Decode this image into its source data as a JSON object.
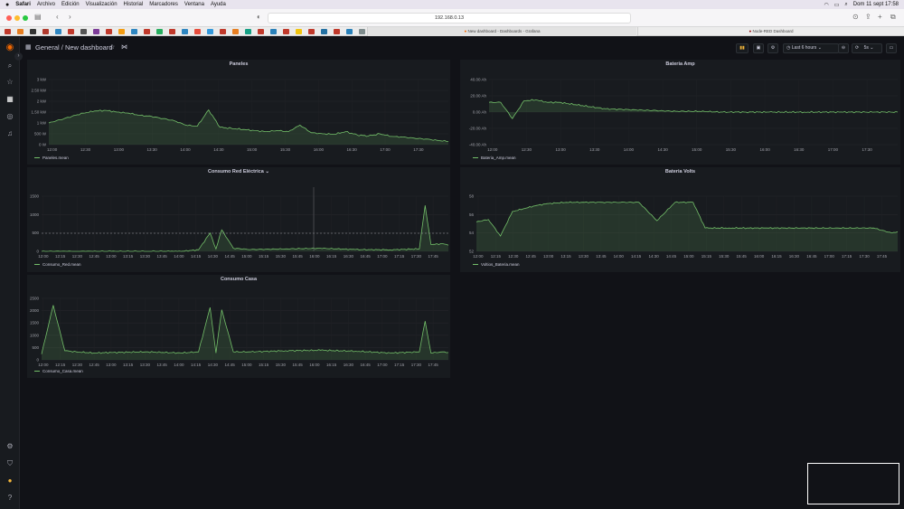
{
  "menubar": {
    "apple": "",
    "items": [
      "Safari",
      "Archivo",
      "Edición",
      "Visualización",
      "Historial",
      "Marcadores",
      "Ventana",
      "Ayuda"
    ],
    "clock": "Dom 11 sept  17:58"
  },
  "browser": {
    "address": "192.168.0.13",
    "tab1": "New dashboard - Dashboards - Grafana",
    "tab2": "Node-RED Dashboard"
  },
  "topbar": {
    "breadcrumb_root": "General",
    "breadcrumb_sep": "/",
    "breadcrumb_page": "New dashboard",
    "time_range": "Last 6 hours",
    "refresh": "5s"
  },
  "colors": {
    "series": "#73bf69",
    "bg": "#111217",
    "panel": "#181b1f"
  },
  "panels": {
    "paneles": {
      "title": "Paneles",
      "legend": "Paneles.mean",
      "yticks": [
        "3 kW",
        "2.50 kW",
        "2 kW",
        "1.50 kW",
        "1 kW",
        "500 W",
        "0 W"
      ],
      "xticks": [
        "12:00",
        "12:30",
        "13:00",
        "13:30",
        "14:00",
        "14:30",
        "15:00",
        "15:30",
        "16:00",
        "16:30",
        "17:00",
        "17:30"
      ]
    },
    "bateria_amp": {
      "title": "Bateria Amp",
      "legend": "Bateria_Amp.mean",
      "yticks": [
        "40.00 Ah",
        "20.00 Ah",
        "0.00 Ah",
        "-20.00 Ah",
        "-40.00 Ah"
      ],
      "xticks": [
        "12:00",
        "12:30",
        "13:00",
        "13:30",
        "14:00",
        "14:30",
        "15:00",
        "15:30",
        "16:00",
        "16:30",
        "17:00",
        "17:30"
      ]
    },
    "consumo_red": {
      "title": "Consumo Red Eléctrica",
      "legend": "Consumo_Red.mean",
      "yticks": [
        "1500",
        "1000",
        "500",
        "0"
      ],
      "xticks": [
        "12:00",
        "12:15",
        "12:30",
        "12:45",
        "13:00",
        "13:15",
        "13:30",
        "13:45",
        "14:00",
        "14:15",
        "14:30",
        "14:45",
        "15:00",
        "15:15",
        "15:30",
        "15:45",
        "16:00",
        "16:15",
        "16:30",
        "16:45",
        "17:00",
        "17:15",
        "17:30",
        "17:45"
      ]
    },
    "bateria_volts": {
      "title": "Bateria Volts",
      "legend": "Voltios_Bateria.mean",
      "yticks": [
        "58",
        "56",
        "54",
        "52"
      ],
      "xticks": [
        "12:00",
        "12:15",
        "12:30",
        "12:45",
        "13:00",
        "13:15",
        "13:30",
        "13:45",
        "14:00",
        "14:15",
        "14:30",
        "14:45",
        "15:00",
        "15:15",
        "15:30",
        "15:45",
        "16:00",
        "16:15",
        "16:30",
        "16:45",
        "17:00",
        "17:15",
        "17:30",
        "17:45"
      ]
    },
    "consumo_casa": {
      "title": "Consumo Casa",
      "legend": "Consumo_Casa.mean",
      "yticks": [
        "2500",
        "2000",
        "1500",
        "1000",
        "500",
        "0"
      ],
      "xticks": [
        "12:00",
        "12:15",
        "12:30",
        "12:45",
        "13:00",
        "13:15",
        "13:30",
        "13:45",
        "14:00",
        "14:15",
        "14:30",
        "14:45",
        "15:00",
        "15:15",
        "15:30",
        "15:45",
        "16:00",
        "16:15",
        "16:30",
        "16:45",
        "17:00",
        "17:15",
        "17:30",
        "17:45"
      ]
    }
  },
  "chart_data": [
    {
      "type": "area",
      "title": "Paneles",
      "ylabel": "",
      "ylim": [
        0,
        3000
      ],
      "unit": "W",
      "series": [
        {
          "name": "Paneles.mean",
          "x": [
            "12:00",
            "12:10",
            "12:20",
            "12:30",
            "12:40",
            "12:50",
            "13:00",
            "13:10",
            "13:20",
            "13:30",
            "13:40",
            "13:50",
            "14:00",
            "14:10",
            "14:20",
            "14:30",
            "14:40",
            "14:50",
            "15:00",
            "15:10",
            "15:20",
            "15:30",
            "15:40",
            "15:50",
            "16:00",
            "16:10",
            "16:20",
            "16:30",
            "16:40",
            "16:50",
            "17:00",
            "17:10",
            "17:20",
            "17:30",
            "17:40",
            "17:50"
          ],
          "values": [
            1000,
            1150,
            1300,
            1450,
            1550,
            1580,
            1500,
            1450,
            1350,
            1300,
            1200,
            1100,
            900,
            850,
            1600,
            800,
            750,
            700,
            650,
            600,
            650,
            600,
            900,
            550,
            500,
            480,
            600,
            450,
            400,
            500,
            380,
            350,
            300,
            260,
            200,
            150
          ]
        }
      ]
    },
    {
      "type": "area",
      "title": "Bateria Amp",
      "ylabel": "",
      "ylim": [
        -40,
        40
      ],
      "unit": "Ah",
      "series": [
        {
          "name": "Bateria_Amp.mean",
          "x": [
            "12:00",
            "12:10",
            "12:20",
            "12:30",
            "12:40",
            "12:50",
            "13:00",
            "13:20",
            "13:40",
            "14:00",
            "14:20",
            "14:40",
            "15:00",
            "15:20",
            "15:40",
            "16:00",
            "16:30",
            "17:00",
            "17:30",
            "17:50"
          ],
          "values": [
            12,
            12,
            -8,
            14,
            15,
            12,
            12,
            8,
            4,
            3,
            2,
            1,
            1,
            0,
            0,
            0,
            0,
            0,
            0,
            0
          ]
        }
      ]
    },
    {
      "type": "area",
      "title": "Consumo Red Eléctrica",
      "ylabel": "",
      "ylim": [
        0,
        1800
      ],
      "unit": "W",
      "series": [
        {
          "name": "Consumo_Red.mean",
          "x": [
            "12:00",
            "12:30",
            "13:00",
            "13:30",
            "14:00",
            "14:15",
            "14:25",
            "14:30",
            "14:35",
            "14:45",
            "15:00",
            "15:30",
            "16:00",
            "16:30",
            "17:00",
            "17:25",
            "17:30",
            "17:35",
            "17:45",
            "17:50"
          ],
          "values": [
            0,
            0,
            0,
            0,
            0,
            50,
            600,
            80,
            700,
            100,
            60,
            80,
            100,
            60,
            50,
            80,
            1500,
            220,
            250,
            200
          ]
        }
      ]
    },
    {
      "type": "area",
      "title": "Bateria Volts",
      "ylabel": "",
      "ylim": [
        50,
        59
      ],
      "unit": "V",
      "series": [
        {
          "name": "Voltios_Bateria.mean",
          "x": [
            "12:00",
            "12:10",
            "12:20",
            "12:30",
            "12:40",
            "12:50",
            "13:00",
            "13:15",
            "13:30",
            "13:45",
            "14:00",
            "14:15",
            "14:30",
            "14:45",
            "15:00",
            "15:10",
            "15:30",
            "16:00",
            "16:30",
            "17:00",
            "17:30",
            "17:45",
            "17:50"
          ],
          "values": [
            54.8,
            55.2,
            52.5,
            56.5,
            57,
            57.5,
            57.8,
            58,
            58,
            58,
            58,
            58,
            55,
            58,
            58,
            53.8,
            53.8,
            53.8,
            53.8,
            53.8,
            53.8,
            53,
            53.2
          ]
        }
      ]
    },
    {
      "type": "area",
      "title": "Consumo Casa",
      "ylabel": "",
      "ylim": [
        0,
        2700
      ],
      "unit": "W",
      "series": [
        {
          "name": "Consumo_Casa.mean",
          "x": [
            "12:00",
            "12:10",
            "12:20",
            "12:30",
            "12:45",
            "13:00",
            "13:30",
            "14:00",
            "14:15",
            "14:25",
            "14:30",
            "14:35",
            "14:45",
            "15:00",
            "15:30",
            "16:00",
            "16:30",
            "17:00",
            "17:25",
            "17:30",
            "17:35",
            "17:45",
            "17:50"
          ],
          "values": [
            250,
            2400,
            400,
            350,
            300,
            320,
            350,
            300,
            350,
            2300,
            300,
            2200,
            350,
            350,
            400,
            420,
            380,
            300,
            350,
            1700,
            300,
            350,
            320
          ]
        }
      ]
    }
  ]
}
